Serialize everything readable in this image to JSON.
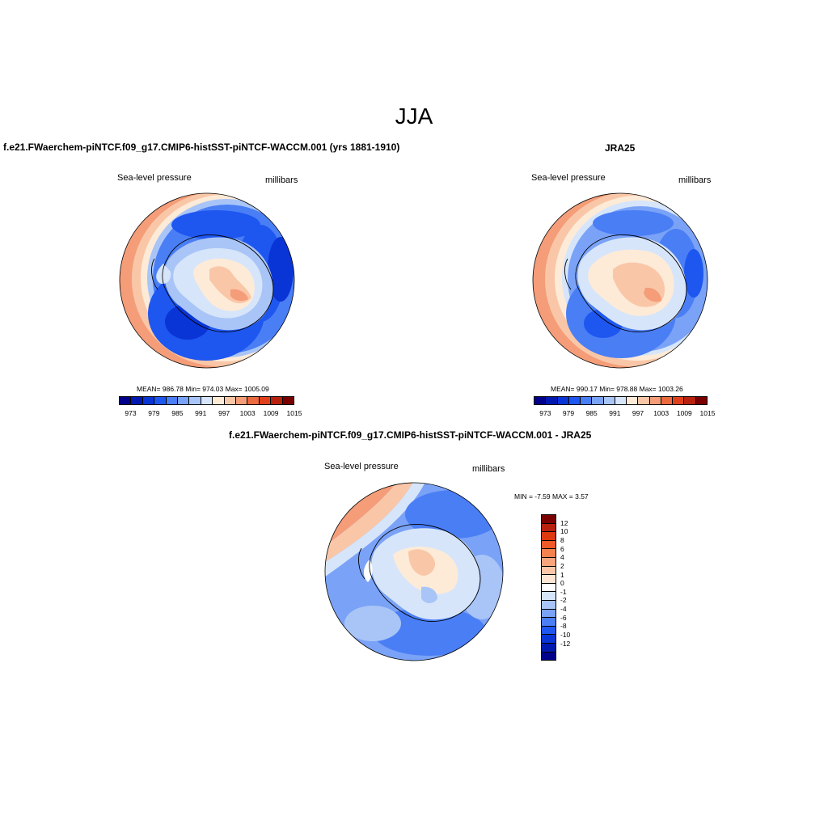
{
  "page": {
    "title": "JJA"
  },
  "panels": {
    "model": {
      "title": "f.e21.FWaerchem-piNTCF.f09_g17.CMIP6-histSST-piNTCF-WACCM.001 (yrs 1881-1910)",
      "left_label": "Sea-level pressure",
      "right_label": "millibars",
      "stats": "MEAN= 986.78   Min= 974.03   Max= 1005.09"
    },
    "obs": {
      "title": "JRA25",
      "left_label": "Sea-level pressure",
      "right_label": "millibars",
      "stats": "MEAN= 990.17   Min= 978.88   Max= 1003.26"
    },
    "diff": {
      "title": "f.e21.FWaerchem-piNTCF.f09_g17.CMIP6-histSST-piNTCF-WACCM.001 - JRA25",
      "left_label": "Sea-level pressure",
      "right_label": "millibars",
      "stats": "MIN =  -7.59 MAX =   3.57"
    }
  },
  "colorbars": {
    "abs": {
      "colors": [
        "#00008b",
        "#0018b0",
        "#0a35d6",
        "#1e56f0",
        "#4a7ef5",
        "#7aa2f7",
        "#a9c5f7",
        "#d6e5fa",
        "#fdebd8",
        "#f9c7a8",
        "#f49d78",
        "#ec6a3f",
        "#e0411c",
        "#b8210e",
        "#7a0000"
      ],
      "ticks": [
        "973",
        "979",
        "985",
        "991",
        "997",
        "1003",
        "1009",
        "1015"
      ]
    },
    "diff": {
      "colors": [
        "#7a0000",
        "#b8210e",
        "#dd3a10",
        "#ef5a28",
        "#f4824f",
        "#f8a47d",
        "#fbc7a8",
        "#fde6d3",
        "#ffffff",
        "#d6e5fa",
        "#a9c5f7",
        "#7aa2f7",
        "#4a7ef5",
        "#1e56f0",
        "#0a35d6",
        "#001ab0",
        "#00008b"
      ],
      "ticks": [
        "12",
        "10",
        "8",
        "6",
        "4",
        "2",
        "1",
        "0",
        "-1",
        "-2",
        "-4",
        "-6",
        "-8",
        "-10",
        "-12"
      ]
    }
  },
  "map_colors": {
    "deep_blue": "#0a35d6",
    "mid_blue": "#1e56f0",
    "light_blue": "#7aa2f7",
    "pale_blue": "#d6e5fa",
    "cream": "#fdebd8",
    "peach": "#f9c7a8",
    "salmon": "#f49d78",
    "orange": "#ec6a3f"
  }
}
